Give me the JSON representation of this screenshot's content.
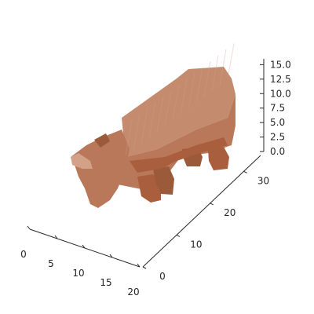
{
  "chart_data": {
    "type": "voxel",
    "title": "",
    "xlabel": "",
    "ylabel": "",
    "zlabel": "",
    "grid": false,
    "xlim": [
      0,
      20
    ],
    "ylim": [
      0,
      35
    ],
    "zlim": [
      0,
      16
    ],
    "x_ticks": [
      "0",
      "5",
      "10",
      "15",
      "20"
    ],
    "y_ticks": [
      "0",
      "10",
      "20",
      "30"
    ],
    "z_ticks": [
      "0.0",
      "2.5",
      "5.0",
      "7.5",
      "10.0",
      "12.5",
      "15.0"
    ],
    "object": "pig",
    "colors": {
      "top": "#c48b6f",
      "side": "#b9785a",
      "dark": "#9b5a3a",
      "belly": "#a95f3d",
      "highlight": "#d3a188"
    }
  }
}
